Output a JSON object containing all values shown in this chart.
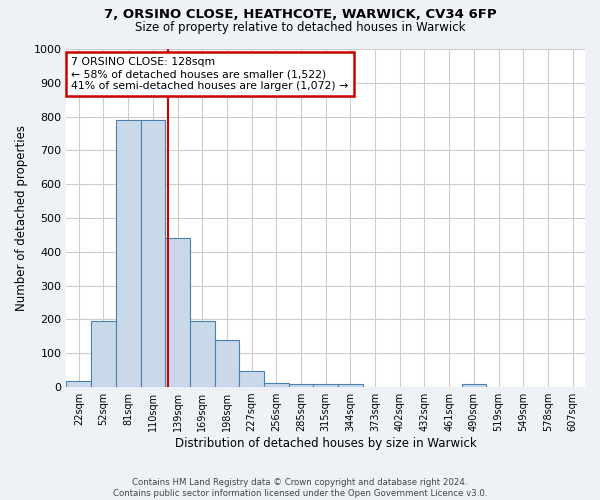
{
  "title1": "7, ORSINO CLOSE, HEATHCOTE, WARWICK, CV34 6FP",
  "title2": "Size of property relative to detached houses in Warwick",
  "xlabel": "Distribution of detached houses by size in Warwick",
  "ylabel": "Number of detached properties",
  "bin_labels": [
    "22sqm",
    "52sqm",
    "81sqm",
    "110sqm",
    "139sqm",
    "169sqm",
    "198sqm",
    "227sqm",
    "256sqm",
    "285sqm",
    "315sqm",
    "344sqm",
    "373sqm",
    "402sqm",
    "432sqm",
    "461sqm",
    "490sqm",
    "519sqm",
    "549sqm",
    "578sqm",
    "607sqm"
  ],
  "bin_centers": [
    0,
    1,
    2,
    3,
    4,
    5,
    6,
    7,
    8,
    9,
    10,
    11,
    12,
    13,
    14,
    15,
    16,
    17,
    18,
    19,
    20
  ],
  "bar_heights": [
    18,
    195,
    790,
    790,
    440,
    195,
    140,
    48,
    13,
    10,
    10,
    10,
    0,
    0,
    0,
    0,
    10,
    0,
    0,
    0,
    0
  ],
  "bar_color": "#c9d9ea",
  "bar_edge_color": "#4a80b0",
  "red_line_x": 3.6,
  "annotation_text": "7 ORSINO CLOSE: 128sqm\n← 58% of detached houses are smaller (1,522)\n41% of semi-detached houses are larger (1,072) →",
  "annotation_box_color": "#ffffff",
  "annotation_box_edge_color": "#cc0000",
  "ylim": [
    0,
    1000
  ],
  "yticks": [
    0,
    100,
    200,
    300,
    400,
    500,
    600,
    700,
    800,
    900,
    1000
  ],
  "footer_text": "Contains HM Land Registry data © Crown copyright and database right 2024.\nContains public sector information licensed under the Open Government Licence v3.0.",
  "bg_color": "#eef2f7",
  "plot_bg_color": "#ffffff",
  "grid_color": "#cccccc"
}
